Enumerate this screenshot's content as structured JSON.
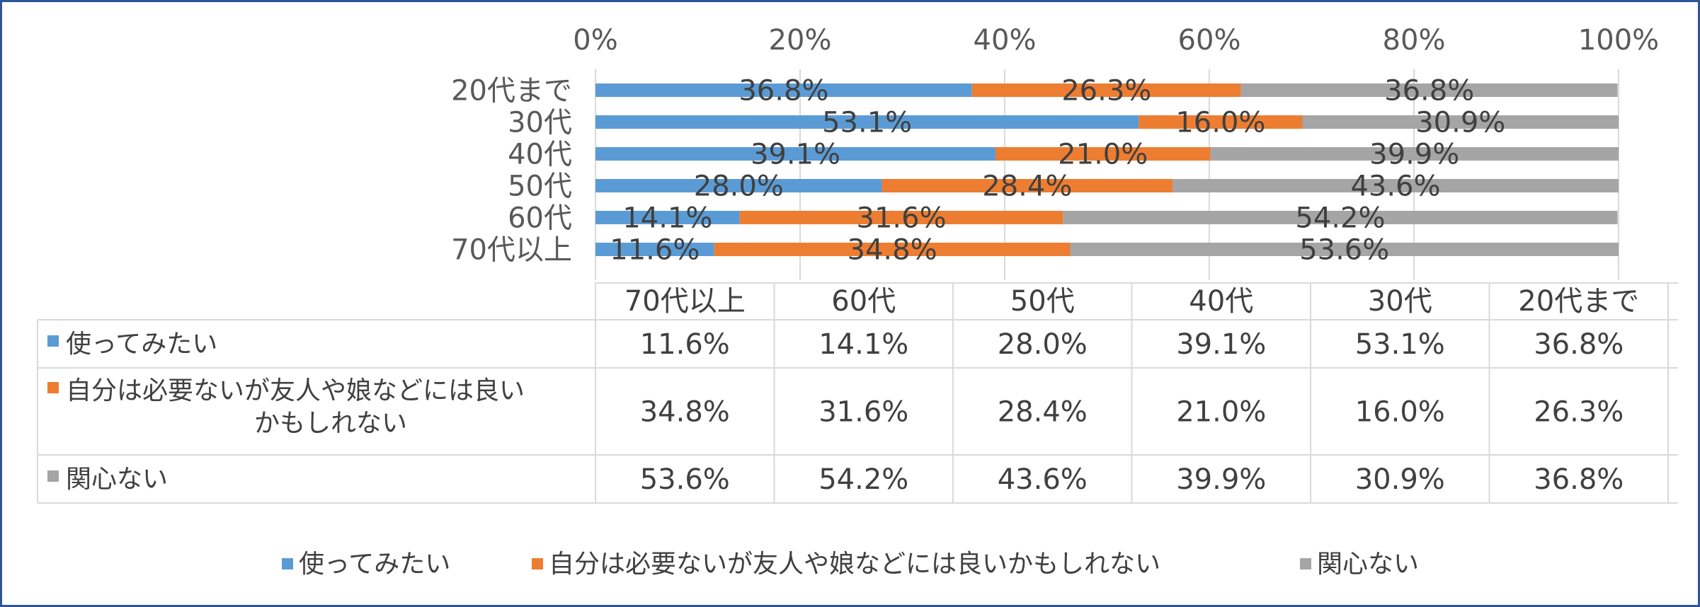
{
  "chart_data": {
    "type": "bar",
    "orientation": "horizontal",
    "stacked": true,
    "percent_stacked": true,
    "title": "",
    "xlabel": "",
    "ylabel": "",
    "xlim": [
      0,
      100
    ],
    "x_ticks": [
      "0%",
      "20%",
      "40%",
      "60%",
      "80%",
      "100%"
    ],
    "grid": true,
    "legend_position": "bottom",
    "categories": [
      "20代まで",
      "30代",
      "40代",
      "50代",
      "60代",
      "70代以上"
    ],
    "series": [
      {
        "name": "使ってみたい",
        "color": "#5b9bd5",
        "values": [
          36.8,
          53.1,
          39.1,
          28.0,
          14.1,
          11.6
        ]
      },
      {
        "name": "自分は必要ないが友人や娘などには良いかもしれない",
        "color": "#ed7d31",
        "values": [
          26.3,
          16.0,
          21.0,
          28.4,
          31.6,
          34.8
        ]
      },
      {
        "name": "関心ない",
        "color": "#a5a5a5",
        "values": [
          36.8,
          30.9,
          39.9,
          43.6,
          54.2,
          53.6
        ]
      }
    ],
    "data_table": {
      "columns": [
        "70代以上",
        "60代",
        "50代",
        "40代",
        "30代",
        "20代まで"
      ],
      "rows": [
        {
          "label_lines": [
            "使ってみたい"
          ],
          "values": [
            "11.6%",
            "14.1%",
            "28.0%",
            "39.1%",
            "53.1%",
            "36.8%"
          ]
        },
        {
          "label_lines": [
            "自分は必要ないが友人や娘などには良い",
            "かもしれない"
          ],
          "values": [
            "34.8%",
            "31.6%",
            "28.4%",
            "21.0%",
            "16.0%",
            "26.3%"
          ]
        },
        {
          "label_lines": [
            "関心ない"
          ],
          "values": [
            "53.6%",
            "54.2%",
            "43.6%",
            "39.9%",
            "30.9%",
            "36.8%"
          ]
        }
      ]
    }
  }
}
